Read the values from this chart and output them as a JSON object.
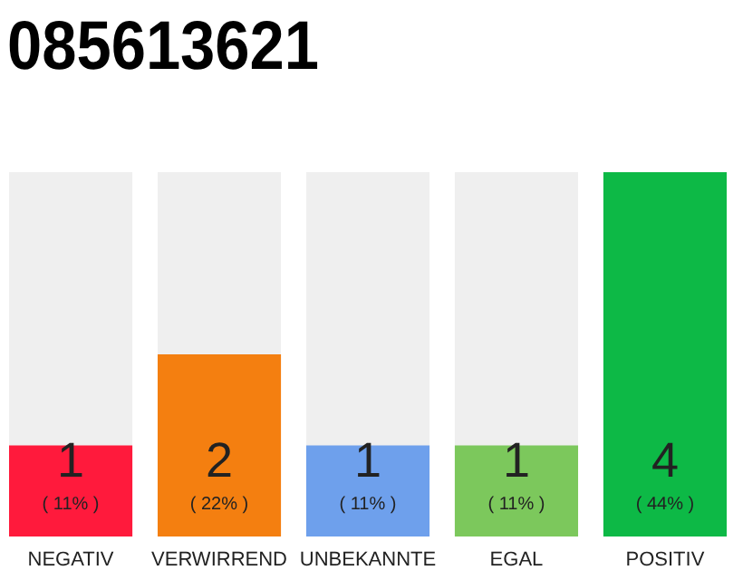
{
  "chart_data": {
    "type": "bar",
    "title": "085613621",
    "categories": [
      "NEGATIV",
      "VERWIRREND",
      "UNBEKANNTE",
      "EGAL",
      "POSITIV"
    ],
    "values": [
      1,
      2,
      1,
      1,
      4
    ],
    "colors": [
      "#ff1a3c",
      "#f47f10",
      "#6ea0ec",
      "#7cc85c",
      "#0db946"
    ],
    "data_labels": true,
    "annotations": [
      "( 11% )",
      "( 22% )",
      "( 11% )",
      "( 11% )",
      "( 44% )"
    ]
  }
}
